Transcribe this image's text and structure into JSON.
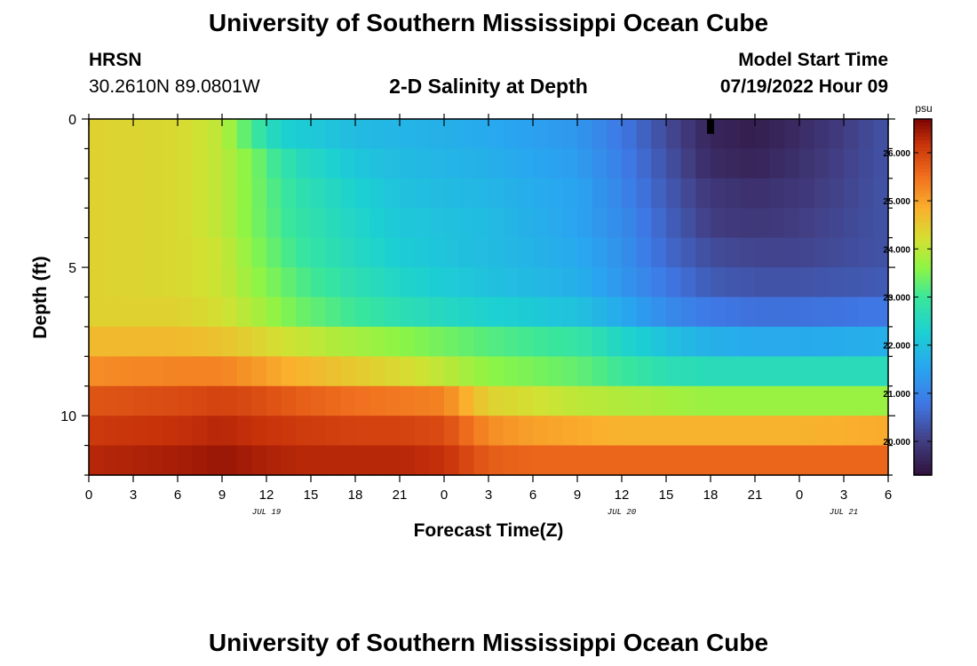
{
  "header": {
    "title": "University of Southern Mississippi Ocean Cube",
    "station_id": "HRSN",
    "station_coords": "30.2610N  89.0801W",
    "chart_title": "2-D Salinity at Depth",
    "model_label": "Model Start Time",
    "model_time": "07/19/2022 Hour 09"
  },
  "footer": {
    "title": "University of Southern Mississippi Ocean Cube"
  },
  "chart_data": {
    "type": "heatmap",
    "title": "2-D Salinity at Depth",
    "xlabel": "Forecast Time(Z)",
    "ylabel": "Depth (ft)",
    "x_hours_range": [
      0,
      54
    ],
    "y_range": [
      0,
      12
    ],
    "x_tick_labels": [
      "0",
      "3",
      "6",
      "9",
      "12",
      "15",
      "18",
      "21",
      "0",
      "3",
      "6",
      "9",
      "12",
      "15",
      "18",
      "21",
      "0",
      "3",
      "6"
    ],
    "y_tick_labels": [
      "0",
      "5",
      "10"
    ],
    "y_tick_values": [
      0,
      5,
      10
    ],
    "date_labels": [
      {
        "text": "JUL 19",
        "hour": 12
      },
      {
        "text": "JUL 20",
        "hour": 36
      },
      {
        "text": "JUL 21",
        "hour": 51
      }
    ],
    "colorbar": {
      "unit": "psu",
      "min": 19.3,
      "max": 26.7,
      "ticks": [
        20.0,
        21.0,
        22.0,
        23.0,
        24.0,
        25.0,
        26.0
      ],
      "tick_labels": [
        "20.000",
        "21.000",
        "22.000",
        "23.000",
        "24.000",
        "25.000",
        "26.000"
      ]
    },
    "depth_layers_ft": [
      0.5,
      1.5,
      2.5,
      3.5,
      4.5,
      5.5,
      6.5,
      7.5,
      8.5,
      9.5,
      10.5,
      11.5
    ],
    "series": [
      {
        "depth": 0.5,
        "hours": [
          0,
          6,
          9,
          10,
          13,
          18,
          21,
          27,
          33,
          36,
          39,
          42,
          45,
          48,
          54
        ],
        "values": [
          24.4,
          24.3,
          24.0,
          23.5,
          22.3,
          21.9,
          21.8,
          21.6,
          21.3,
          20.8,
          20.2,
          19.6,
          19.5,
          19.7,
          20.3
        ]
      },
      {
        "depth": 1.5,
        "hours": [
          0,
          6,
          9,
          11,
          14,
          18,
          21,
          27,
          33,
          36,
          39,
          42,
          45,
          48,
          54
        ],
        "values": [
          24.4,
          24.3,
          24.0,
          23.5,
          22.6,
          22.1,
          21.9,
          21.7,
          21.4,
          20.9,
          20.3,
          19.7,
          19.6,
          19.8,
          20.3
        ]
      },
      {
        "depth": 2.5,
        "hours": [
          0,
          6,
          9,
          11,
          14,
          18,
          21,
          27,
          33,
          36,
          39,
          42,
          45,
          48,
          54
        ],
        "values": [
          24.4,
          24.3,
          24.0,
          23.5,
          22.8,
          22.3,
          22.0,
          21.8,
          21.5,
          21.0,
          20.4,
          19.9,
          19.8,
          19.9,
          20.3
        ]
      },
      {
        "depth": 3.5,
        "hours": [
          0,
          6,
          9,
          11,
          14,
          18,
          21,
          27,
          33,
          36,
          39,
          42,
          45,
          48,
          54
        ],
        "values": [
          24.4,
          24.3,
          24.0,
          23.5,
          22.9,
          22.4,
          22.1,
          21.9,
          21.5,
          21.1,
          20.5,
          20.0,
          19.9,
          20.0,
          20.3
        ]
      },
      {
        "depth": 4.5,
        "hours": [
          0,
          6,
          9,
          11,
          14,
          18,
          21,
          27,
          33,
          36,
          39,
          42,
          45,
          48,
          54
        ],
        "values": [
          24.4,
          24.3,
          24.1,
          23.6,
          23.0,
          22.5,
          22.2,
          21.9,
          21.6,
          21.2,
          20.6,
          20.2,
          20.1,
          20.1,
          20.3
        ]
      },
      {
        "depth": 5.5,
        "hours": [
          0,
          6,
          9,
          11,
          14,
          18,
          21,
          27,
          33,
          36,
          39,
          42,
          45,
          48,
          54
        ],
        "values": [
          24.4,
          24.3,
          24.1,
          23.7,
          23.2,
          22.7,
          22.4,
          22.0,
          21.7,
          21.3,
          20.8,
          20.4,
          20.3,
          20.3,
          20.4
        ]
      },
      {
        "depth": 6.5,
        "hours": [
          0,
          6,
          9,
          11,
          14,
          18,
          21,
          27,
          33,
          36,
          39,
          42,
          45,
          48,
          54
        ],
        "values": [
          24.4,
          24.4,
          24.2,
          23.9,
          23.4,
          23.0,
          22.7,
          22.3,
          22.0,
          21.6,
          21.1,
          20.8,
          20.7,
          20.7,
          20.8
        ]
      },
      {
        "depth": 7.5,
        "hours": [
          0,
          6,
          9,
          11,
          14,
          18,
          21,
          27,
          33,
          36,
          39,
          42,
          45,
          48,
          54
        ],
        "values": [
          24.7,
          24.7,
          24.6,
          24.4,
          24.1,
          23.8,
          23.6,
          23.2,
          22.9,
          22.4,
          22.0,
          21.7,
          21.6,
          21.6,
          21.7
        ]
      },
      {
        "depth": 8.5,
        "hours": [
          0,
          6,
          9,
          11,
          14,
          18,
          21,
          24,
          27,
          33,
          36,
          39,
          42,
          45,
          48,
          54
        ],
        "values": [
          25.2,
          25.3,
          25.3,
          25.1,
          24.8,
          24.5,
          24.3,
          24.0,
          23.6,
          23.3,
          23.0,
          22.7,
          22.6,
          22.6,
          22.6,
          22.6
        ]
      },
      {
        "depth": 9.5,
        "hours": [
          0,
          6,
          9,
          11,
          14,
          18,
          21,
          24,
          27,
          30,
          33,
          36,
          39,
          42,
          45,
          48,
          54
        ],
        "values": [
          25.8,
          25.9,
          26.0,
          25.9,
          25.7,
          25.5,
          25.4,
          25.3,
          24.4,
          24.2,
          24.0,
          23.9,
          23.8,
          23.7,
          23.7,
          23.7,
          23.7
        ]
      },
      {
        "depth": 10.5,
        "hours": [
          0,
          6,
          9,
          11,
          14,
          18,
          21,
          24,
          27,
          30,
          33,
          36,
          39,
          42,
          45,
          48,
          54
        ],
        "values": [
          26.1,
          26.2,
          26.3,
          26.2,
          26.1,
          26.0,
          26.0,
          25.9,
          25.2,
          25.0,
          24.9,
          24.8,
          24.8,
          24.8,
          24.8,
          24.8,
          24.9
        ]
      },
      {
        "depth": 11.5,
        "hours": [
          0,
          6,
          9,
          11,
          14,
          18,
          21,
          24,
          27,
          30,
          33,
          36,
          39,
          42,
          45,
          48,
          54
        ],
        "values": [
          26.3,
          26.4,
          26.5,
          26.4,
          26.3,
          26.3,
          26.3,
          26.2,
          25.7,
          25.6,
          25.6,
          25.6,
          25.6,
          25.6,
          25.6,
          25.6,
          25.6
        ]
      }
    ],
    "marker": {
      "hour": 42,
      "depth_top": 0,
      "depth_bottom": 0.5
    }
  }
}
